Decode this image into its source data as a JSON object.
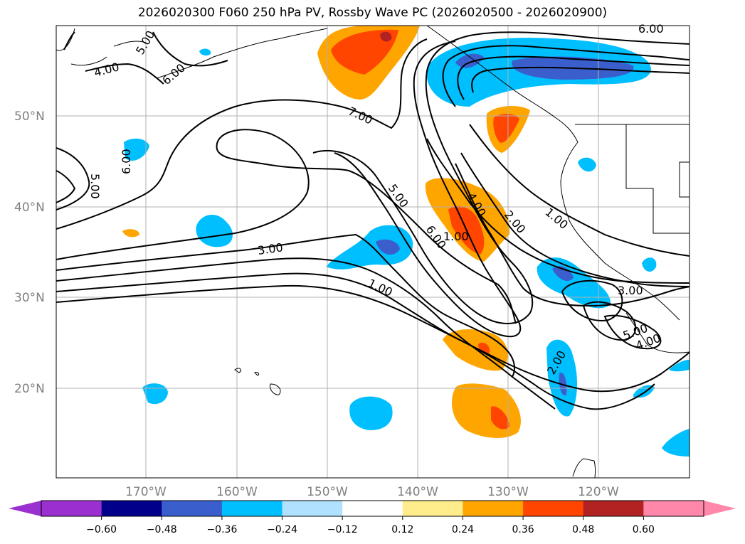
{
  "title": "2026020300 F060 250 hPa PV, Rossby Wave PC (2026020500 - 2026020900)",
  "map": {
    "lat_labels": [
      "50°N",
      "40°N",
      "30°N",
      "20°N"
    ],
    "lon_labels": [
      "170°W",
      "160°W",
      "150°W",
      "140°W",
      "130°W",
      "120°W"
    ],
    "contour_labels": [
      "6.00",
      "5.00",
      "4.00",
      "6.00",
      "7.00",
      "5.00",
      "6.00",
      "5.00",
      "4.00",
      "6.00",
      "1.00",
      "2.00",
      "1.00",
      "3.00",
      "1.00",
      "3.00",
      "5.00",
      "4.00",
      "2.00"
    ]
  },
  "colorbar": {
    "colors": [
      "#9b30d0",
      "#00008b",
      "#3a5fcd",
      "#00bfff",
      "#b0e2ff",
      "#ffffff",
      "#ffec8b",
      "#ffa500",
      "#ff4500",
      "#b22222",
      "#ff88aa",
      "#ff88aa"
    ],
    "tick_labels": [
      "−0.60",
      "−0.48",
      "−0.36",
      "−0.24",
      "−0.12",
      "0.12",
      "0.24",
      "0.36",
      "0.48",
      "0.60"
    ]
  },
  "palette": {
    "neg_light": "#b0e2ff",
    "neg_mid": "#00bfff",
    "neg_strong": "#3a5fcd",
    "pos_light": "#ffec8b",
    "pos_mid": "#ffa500",
    "pos_strong": "#ff4500",
    "pos_max": "#b22222",
    "grid": "#b0b0b0"
  }
}
